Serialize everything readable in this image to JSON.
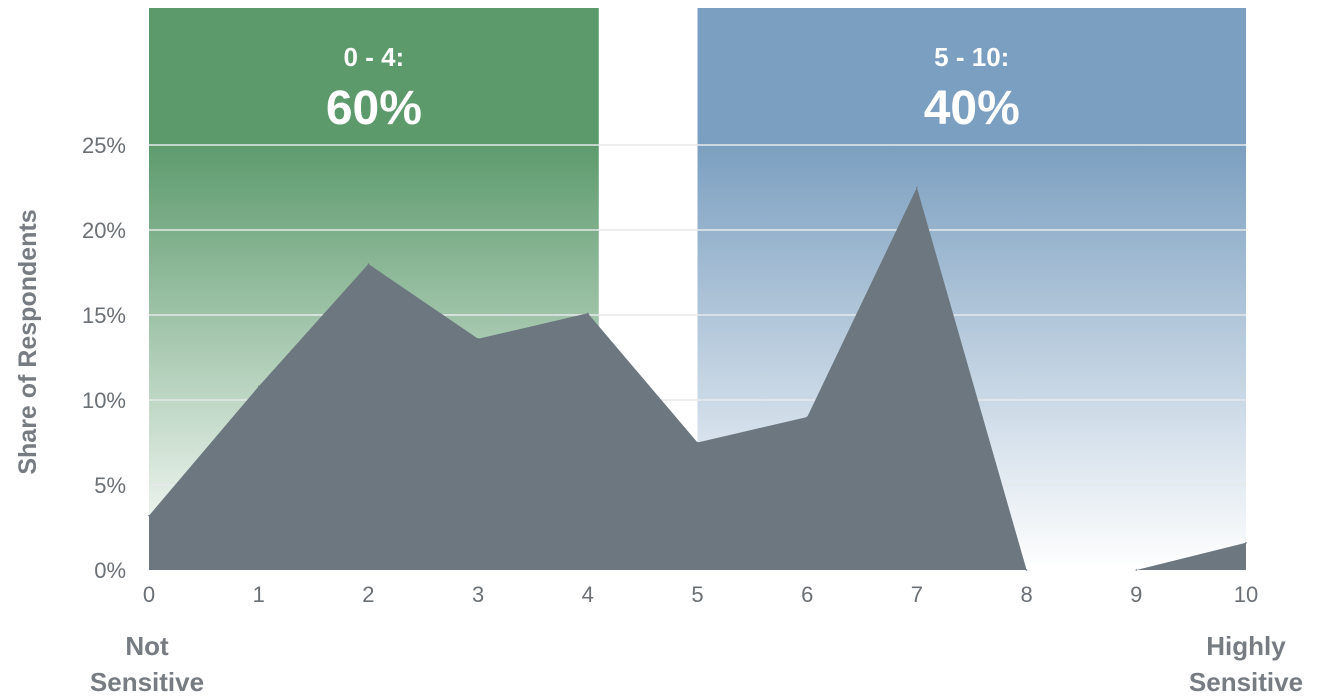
{
  "chart_data": {
    "type": "area",
    "x": [
      0,
      1,
      2,
      3,
      4,
      5,
      6,
      7,
      8,
      9,
      10
    ],
    "x_ticks": [
      "0",
      "1",
      "2",
      "3",
      "4",
      "5",
      "6",
      "7",
      "8",
      "9",
      "10"
    ],
    "values": [
      3.2,
      10.8,
      18.0,
      13.6,
      15.1,
      7.5,
      9.0,
      22.5,
      0.0,
      0.0,
      1.6
    ],
    "xlim": [
      0,
      10
    ],
    "ylim": [
      0,
      25
    ],
    "y_ticks": [
      0,
      5,
      10,
      15,
      20,
      25
    ],
    "y_tick_labels": [
      "0%",
      "5%",
      "10%",
      "15%",
      "20%",
      "25%"
    ],
    "ylabel": "Share of Respondents",
    "grid": true,
    "x_end_labels": {
      "left": [
        "Not",
        "Sensitive"
      ],
      "right": [
        "Highly",
        "Sensitive"
      ]
    },
    "zones": [
      {
        "range_label": "0 - 4:",
        "percent_label": "60%",
        "x_from": 0,
        "x_to": 4.1,
        "color": "#5c9a6c"
      },
      {
        "range_label": "5 - 10:",
        "percent_label": "40%",
        "x_from": 5,
        "x_to": 10,
        "color": "#7b9fc0"
      }
    ],
    "series_color": "#6c7780"
  }
}
